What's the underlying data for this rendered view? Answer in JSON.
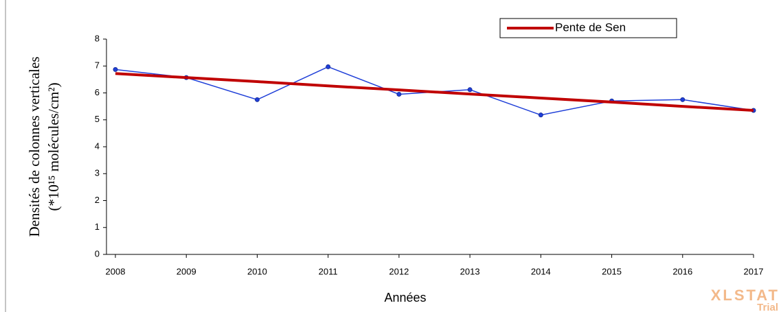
{
  "chart_data": {
    "type": "line",
    "x": [
      2008,
      2009,
      2010,
      2011,
      2012,
      2013,
      2014,
      2015,
      2016,
      2017
    ],
    "series": [
      {
        "color": "#1f3fd8",
        "marker": true,
        "values": [
          6.87,
          6.57,
          5.75,
          6.97,
          5.95,
          6.12,
          5.18,
          5.7,
          5.75,
          5.35
        ]
      },
      {
        "name": "Pente de Sen",
        "color": "#c00000",
        "marker": false,
        "values": [
          6.72,
          6.57,
          6.42,
          6.26,
          6.11,
          5.96,
          5.81,
          5.66,
          5.5,
          5.35
        ]
      }
    ],
    "xlabel": "Années",
    "ylabel": [
      "Densités de colonnes verticales",
      "(*10¹⁵ molécules/cm²)"
    ],
    "xlim": [
      2008,
      2017
    ],
    "xticks": [
      2008,
      2009,
      2010,
      2011,
      2012,
      2013,
      2014,
      2015,
      2016,
      2017
    ],
    "ylim": [
      0,
      8
    ],
    "yticks": [
      0,
      1,
      2,
      3,
      4,
      5,
      6,
      7,
      8
    ],
    "legend": "top-right",
    "watermark": [
      "XLSTAT",
      "Trial"
    ]
  }
}
